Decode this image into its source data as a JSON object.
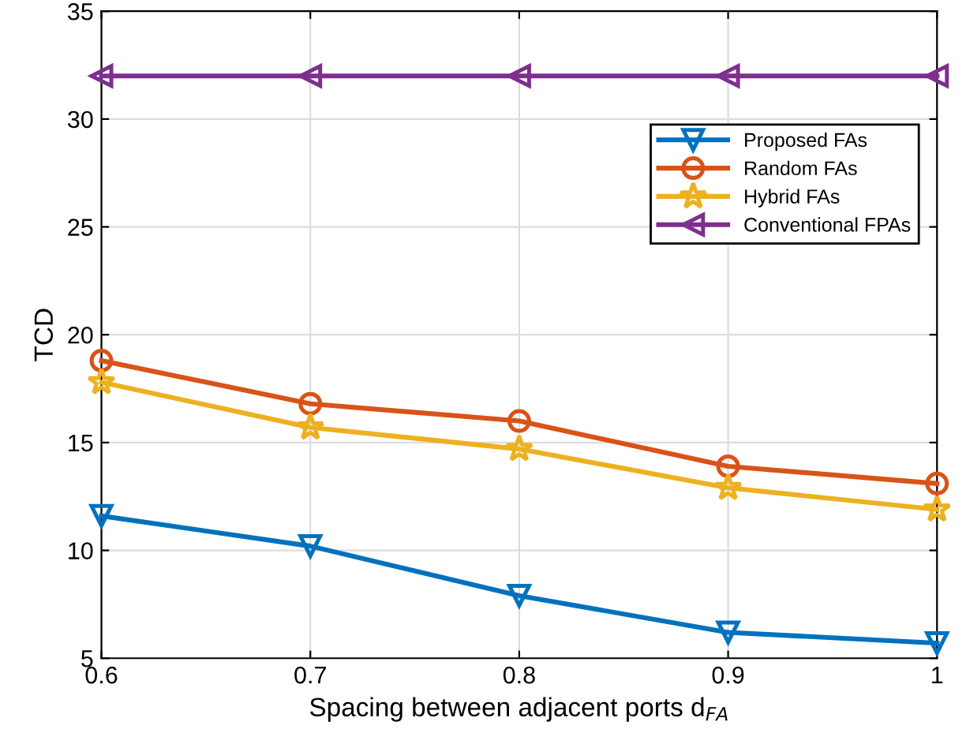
{
  "chart_data": {
    "type": "line",
    "xlabel": "Spacing between adjacent ports d$_{FA}$",
    "ylabel": "TCD",
    "x": [
      0.6,
      0.7,
      0.8,
      0.9,
      1
    ],
    "series": [
      {
        "name": "Proposed FAs",
        "color": "#0072bd",
        "marker": "triangle_down",
        "values": [
          11.6,
          10.2,
          7.9,
          6.2,
          5.7
        ]
      },
      {
        "name": "Random FAs",
        "color": "#d95319",
        "marker": "circle",
        "values": [
          18.8,
          16.8,
          16.0,
          13.9,
          13.1
        ]
      },
      {
        "name": "Hybrid FAs",
        "color": "#edb120",
        "marker": "star",
        "values": [
          17.8,
          15.7,
          14.7,
          12.9,
          11.9
        ]
      },
      {
        "name": "Conventional FPAs",
        "color": "#7e2f8e",
        "marker": "triangle_left",
        "values": [
          32,
          32,
          32,
          32,
          32
        ]
      }
    ],
    "xlim": [
      0.6,
      1
    ],
    "xticks": [
      0.6,
      0.7,
      0.8,
      0.9,
      1
    ],
    "ylim": [
      5,
      35
    ],
    "yticks": [
      5,
      10,
      15,
      20,
      25,
      30,
      35
    ],
    "grid": true,
    "legend": "upper right",
    "line_style": "solid"
  }
}
